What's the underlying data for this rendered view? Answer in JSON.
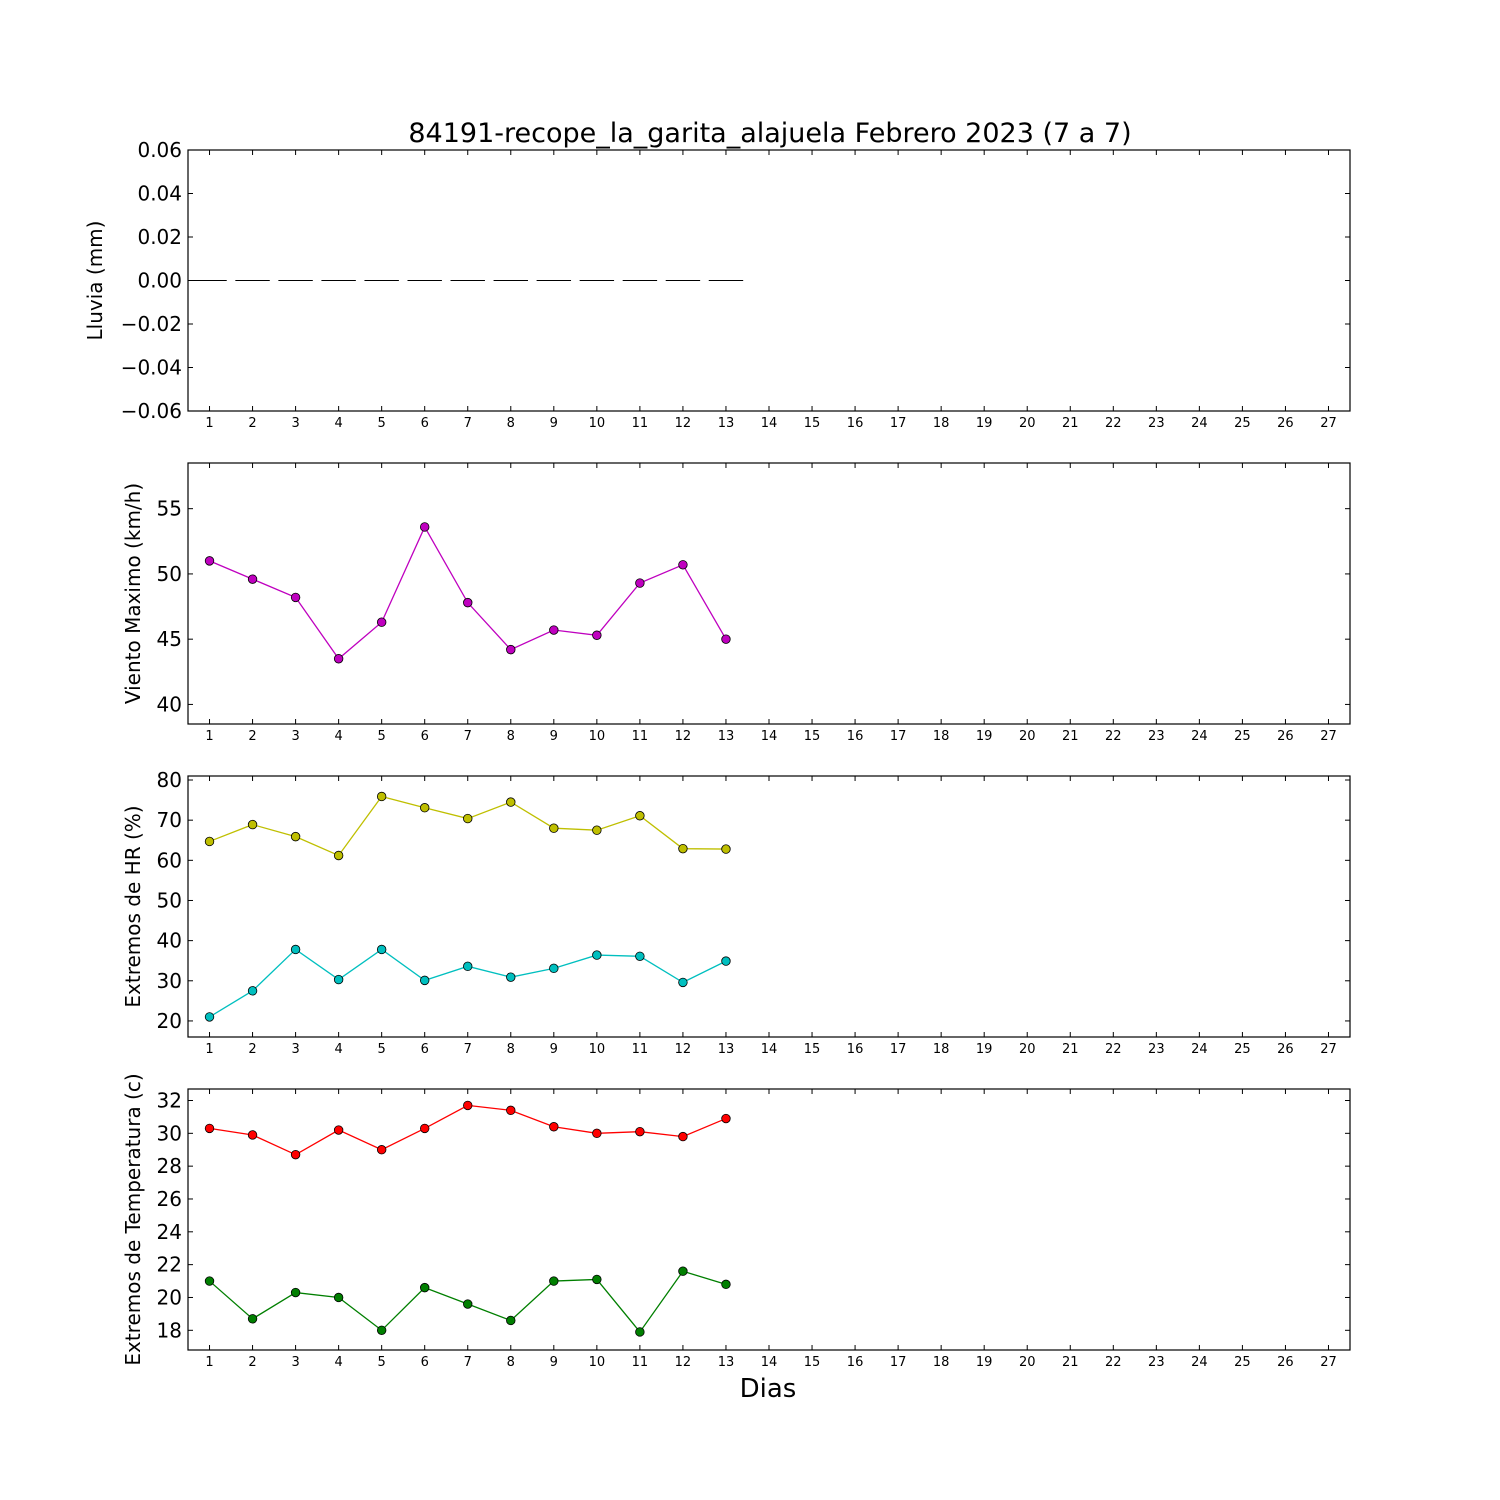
{
  "figure": {
    "title": "84191-recope_la_garita_alajuela Febrero 2023  (7 a 7)",
    "xlabel": "Dias"
  },
  "chart_data": [
    {
      "type": "bar",
      "ylabel": "Lluvia (mm)",
      "xlim": [
        0.5,
        27.5
      ],
      "ylim": [
        -0.06,
        0.06
      ],
      "x_ticks": [
        1,
        2,
        3,
        4,
        5,
        6,
        7,
        8,
        9,
        10,
        11,
        12,
        13,
        14,
        15,
        16,
        17,
        18,
        19,
        20,
        21,
        22,
        23,
        24,
        25,
        26,
        27
      ],
      "y_ticks": [
        -0.06,
        -0.04,
        -0.02,
        0.0,
        0.02,
        0.04,
        0.06
      ],
      "y_tick_labels": [
        "−0.06",
        "−0.04",
        "−0.02",
        "0.00",
        "0.02",
        "0.04",
        "0.06"
      ],
      "categories": [
        1,
        2,
        3,
        4,
        5,
        6,
        7,
        8,
        9,
        10,
        11,
        12,
        13
      ],
      "values": [
        0,
        0,
        0,
        0,
        0,
        0,
        0,
        0,
        0,
        0,
        0,
        0,
        0
      ]
    },
    {
      "type": "line",
      "ylabel": "Viento Maximo (km/h)",
      "xlim": [
        0.5,
        27.5
      ],
      "ylim": [
        38.5,
        58.5
      ],
      "x_ticks": [
        1,
        2,
        3,
        4,
        5,
        6,
        7,
        8,
        9,
        10,
        11,
        12,
        13,
        14,
        15,
        16,
        17,
        18,
        19,
        20,
        21,
        22,
        23,
        24,
        25,
        26,
        27
      ],
      "y_ticks": [
        40,
        45,
        50,
        55
      ],
      "y_tick_labels": [
        "40",
        "45",
        "50",
        "55"
      ],
      "x": [
        1,
        2,
        3,
        4,
        5,
        6,
        7,
        8,
        9,
        10,
        11,
        12,
        13
      ],
      "series": [
        {
          "color": "#bf00bf",
          "values": [
            51.0,
            49.6,
            48.2,
            43.5,
            46.3,
            53.6,
            47.8,
            44.2,
            45.7,
            45.3,
            49.3,
            50.7,
            45.0
          ]
        }
      ]
    },
    {
      "type": "line",
      "ylabel": "Extremos de HR (%)",
      "xlim": [
        0.5,
        27.5
      ],
      "ylim": [
        16,
        81
      ],
      "x_ticks": [
        1,
        2,
        3,
        4,
        5,
        6,
        7,
        8,
        9,
        10,
        11,
        12,
        13,
        14,
        15,
        16,
        17,
        18,
        19,
        20,
        21,
        22,
        23,
        24,
        25,
        26,
        27
      ],
      "y_ticks": [
        20,
        30,
        40,
        50,
        60,
        70,
        80
      ],
      "y_tick_labels": [
        "20",
        "30",
        "40",
        "50",
        "60",
        "70",
        "80"
      ],
      "x": [
        1,
        2,
        3,
        4,
        5,
        6,
        7,
        8,
        9,
        10,
        11,
        12,
        13
      ],
      "series": [
        {
          "color": "#bfbf00",
          "values": [
            64.7,
            68.9,
            65.9,
            61.2,
            75.9,
            73.1,
            70.4,
            74.5,
            68.0,
            67.5,
            71.1,
            62.9,
            62.8
          ]
        },
        {
          "color": "#00bfbf",
          "values": [
            21.0,
            27.5,
            37.8,
            30.3,
            37.8,
            30.1,
            33.6,
            30.9,
            33.1,
            36.4,
            36.1,
            29.6,
            34.9
          ]
        }
      ]
    },
    {
      "type": "line",
      "ylabel": "Extremos de Temperatura (c)",
      "xlim": [
        0.5,
        27.5
      ],
      "ylim": [
        16.8,
        32.7
      ],
      "x_ticks": [
        1,
        2,
        3,
        4,
        5,
        6,
        7,
        8,
        9,
        10,
        11,
        12,
        13,
        14,
        15,
        16,
        17,
        18,
        19,
        20,
        21,
        22,
        23,
        24,
        25,
        26,
        27
      ],
      "y_ticks": [
        18,
        20,
        22,
        24,
        26,
        28,
        30,
        32
      ],
      "y_tick_labels": [
        "18",
        "20",
        "22",
        "24",
        "26",
        "28",
        "30",
        "32"
      ],
      "x": [
        1,
        2,
        3,
        4,
        5,
        6,
        7,
        8,
        9,
        10,
        11,
        12,
        13
      ],
      "series": [
        {
          "color": "#ff0000",
          "values": [
            30.3,
            29.9,
            28.7,
            30.2,
            29.0,
            30.3,
            31.7,
            31.4,
            30.4,
            30.0,
            30.1,
            29.8,
            30.9
          ]
        },
        {
          "color": "#007f00",
          "values": [
            21.0,
            18.7,
            20.3,
            20.0,
            18.0,
            20.6,
            19.6,
            18.6,
            21.0,
            21.1,
            17.9,
            21.6,
            20.8
          ]
        }
      ]
    }
  ]
}
